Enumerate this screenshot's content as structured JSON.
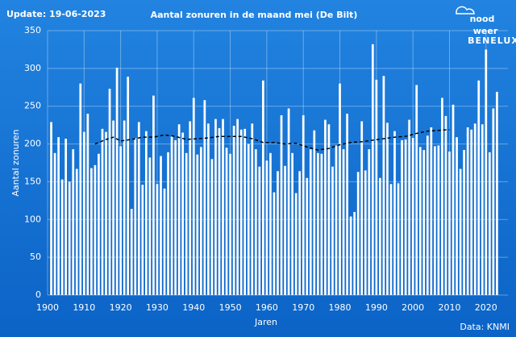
{
  "update": "Update: 19-06-2023",
  "source": "Data: KNMI",
  "logo": {
    "line1": "nood",
    "line2": "weer",
    "sub": "BENELUX"
  },
  "chart_data": {
    "type": "bar",
    "title": "Aantal zonuren in de maand mei (De Bilt)",
    "x_label": "Jaren",
    "y_label": "Aantal zonuren",
    "color": "#ffffff",
    "grid": true,
    "xlim": [
      1900,
      2026
    ],
    "xticks": [
      1900,
      1910,
      1920,
      1930,
      1940,
      1950,
      1960,
      1970,
      1980,
      1990,
      2000,
      2010,
      2020
    ],
    "ylim": [
      0,
      350
    ],
    "yticks": [
      0,
      50,
      100,
      150,
      200,
      250,
      300,
      350
    ],
    "x": [
      1901,
      1902,
      1903,
      1904,
      1905,
      1906,
      1907,
      1908,
      1909,
      1910,
      1911,
      1912,
      1913,
      1914,
      1915,
      1916,
      1917,
      1918,
      1919,
      1920,
      1921,
      1922,
      1923,
      1924,
      1925,
      1926,
      1927,
      1928,
      1929,
      1930,
      1931,
      1932,
      1933,
      1934,
      1935,
      1936,
      1937,
      1938,
      1939,
      1940,
      1941,
      1942,
      1943,
      1944,
      1945,
      1946,
      1947,
      1948,
      1949,
      1950,
      1951,
      1952,
      1953,
      1954,
      1955,
      1956,
      1957,
      1958,
      1959,
      1960,
      1961,
      1962,
      1963,
      1964,
      1965,
      1966,
      1967,
      1968,
      1969,
      1970,
      1971,
      1972,
      1973,
      1974,
      1975,
      1976,
      1977,
      1978,
      1979,
      1980,
      1981,
      1982,
      1983,
      1984,
      1985,
      1986,
      1987,
      1988,
      1989,
      1990,
      1991,
      1992,
      1993,
      1994,
      1995,
      1996,
      1997,
      1998,
      1999,
      2000,
      2001,
      2002,
      2003,
      2004,
      2005,
      2006,
      2007,
      2008,
      2009,
      2010,
      2011,
      2012,
      2013,
      2014,
      2015,
      2016,
      2017,
      2018,
      2019,
      2020,
      2021,
      2022,
      2023
    ],
    "values": [
      229,
      188,
      209,
      153,
      207,
      150,
      193,
      167,
      280,
      216,
      240,
      168,
      172,
      187,
      220,
      216,
      273,
      231,
      301,
      197,
      231,
      289,
      114,
      208,
      229,
      146,
      217,
      182,
      264,
      147,
      184,
      141,
      189,
      210,
      205,
      226,
      215,
      188,
      230,
      261,
      186,
      196,
      258,
      227,
      180,
      233,
      221,
      233,
      195,
      187,
      224,
      233,
      219,
      220,
      200,
      227,
      193,
      170,
      284,
      178,
      188,
      136,
      164,
      238,
      171,
      247,
      188,
      135,
      164,
      238,
      155,
      193,
      218,
      188,
      187,
      232,
      226,
      170,
      198,
      280,
      193,
      240,
      104,
      110,
      163,
      230,
      165,
      193,
      332,
      285,
      155,
      290,
      228,
      147,
      217,
      148,
      205,
      206,
      232,
      208,
      278,
      196,
      192,
      211,
      222,
      197,
      198,
      261,
      237,
      190,
      252,
      209,
      167,
      192,
      222,
      219,
      227,
      284,
      226,
      325,
      189,
      247,
      269
    ],
    "trend": {
      "color": "#000000",
      "x": [
        1913,
        1916,
        1918,
        1920,
        1923,
        1926,
        1929,
        1932,
        1935,
        1938,
        1941,
        1944,
        1947,
        1950,
        1953,
        1956,
        1959,
        1962,
        1965,
        1968,
        1971,
        1974,
        1977,
        1980,
        1983,
        1986,
        1989,
        1992,
        1995,
        1998,
        2001,
        2004,
        2007,
        2010
      ],
      "values": [
        200,
        206,
        209,
        204,
        206,
        209,
        209,
        212,
        210,
        206,
        207,
        208,
        210,
        210,
        210,
        207,
        202,
        202,
        200,
        201,
        196,
        192,
        194,
        199,
        202,
        203,
        205,
        207,
        209,
        210,
        214,
        217,
        218,
        219
      ]
    }
  }
}
